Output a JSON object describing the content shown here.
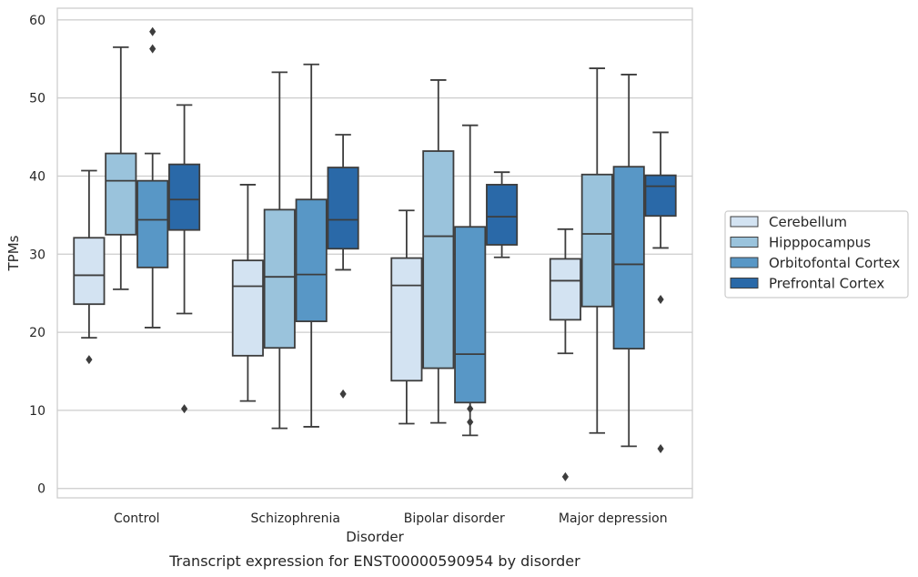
{
  "chart_data": {
    "type": "box",
    "title": "",
    "caption": "Transcript expression for ENST00000590954 by disorder",
    "xlabel": "Disorder",
    "ylabel": "TPMs",
    "ylim": [
      -1.2,
      61.5
    ],
    "yticks": [
      0,
      10,
      20,
      30,
      40,
      50,
      60
    ],
    "grid": "horizontal",
    "legend_position": "right",
    "categories": [
      "Control",
      "Schizophrenia",
      "Bipolar disorder",
      "Major depression"
    ],
    "series": [
      {
        "name": "Cerebellum",
        "color": "#d3e3f2",
        "boxes": [
          {
            "whislo": 19.3,
            "q1": 23.6,
            "med": 27.3,
            "q3": 32.1,
            "whishi": 40.7,
            "fliers": [
              16.5
            ]
          },
          {
            "whislo": 11.2,
            "q1": 17.0,
            "med": 25.9,
            "q3": 29.2,
            "whishi": 38.9,
            "fliers": []
          },
          {
            "whislo": 8.3,
            "q1": 13.8,
            "med": 26.0,
            "q3": 29.5,
            "whishi": 35.6,
            "fliers": []
          },
          {
            "whislo": 17.3,
            "q1": 21.6,
            "med": 26.6,
            "q3": 29.4,
            "whishi": 33.2,
            "fliers": [
              1.5
            ]
          }
        ]
      },
      {
        "name": "Hipppocampus",
        "color": "#9ac3dc",
        "boxes": [
          {
            "whislo": 25.5,
            "q1": 32.5,
            "med": 39.4,
            "q3": 42.9,
            "whishi": 56.5,
            "fliers": []
          },
          {
            "whislo": 7.7,
            "q1": 18.0,
            "med": 27.1,
            "q3": 35.7,
            "whishi": 53.3,
            "fliers": []
          },
          {
            "whislo": 8.4,
            "q1": 15.4,
            "med": 32.3,
            "q3": 43.2,
            "whishi": 52.3,
            "fliers": []
          },
          {
            "whislo": 7.1,
            "q1": 23.3,
            "med": 32.6,
            "q3": 40.2,
            "whishi": 53.8,
            "fliers": []
          }
        ]
      },
      {
        "name": "Orbitofontal Cortex",
        "color": "#5897c6",
        "boxes": [
          {
            "whislo": 20.6,
            "q1": 28.3,
            "med": 34.4,
            "q3": 39.4,
            "whishi": 42.9,
            "fliers": [
              56.3,
              58.5
            ]
          },
          {
            "whislo": 7.9,
            "q1": 21.4,
            "med": 27.4,
            "q3": 37.0,
            "whishi": 54.3,
            "fliers": []
          },
          {
            "whislo": 6.8,
            "q1": 11.0,
            "med": 17.2,
            "q3": 33.5,
            "whishi": 46.5,
            "fliers": [
              8.5,
              10.2
            ]
          },
          {
            "whislo": 5.4,
            "q1": 17.9,
            "med": 28.7,
            "q3": 41.2,
            "whishi": 53.0,
            "fliers": []
          }
        ]
      },
      {
        "name": "Prefrontal Cortex",
        "color": "#2a69a8",
        "boxes": [
          {
            "whislo": 22.4,
            "q1": 33.1,
            "med": 37.0,
            "q3": 41.5,
            "whishi": 49.1,
            "fliers": [
              10.2
            ]
          },
          {
            "whislo": 28.0,
            "q1": 30.7,
            "med": 34.4,
            "q3": 41.1,
            "whishi": 45.3,
            "fliers": [
              12.1
            ]
          },
          {
            "whislo": 29.6,
            "q1": 31.2,
            "med": 34.8,
            "q3": 38.9,
            "whishi": 40.5,
            "fliers": []
          },
          {
            "whislo": 30.8,
            "q1": 34.9,
            "med": 38.7,
            "q3": 40.1,
            "whishi": 45.6,
            "fliers": [
              5.1,
              24.2
            ]
          }
        ]
      }
    ]
  }
}
